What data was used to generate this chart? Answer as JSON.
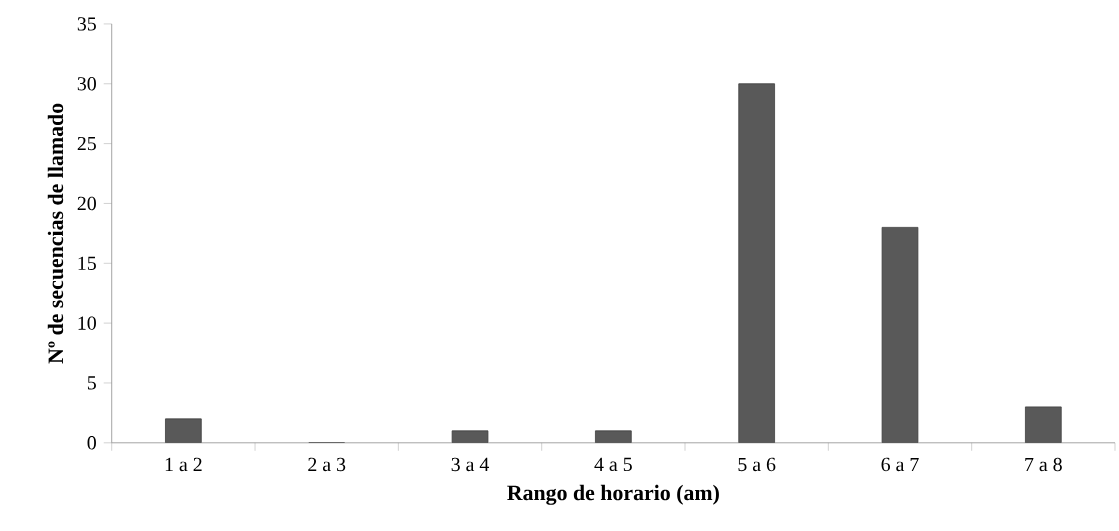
{
  "chart_data": {
    "type": "bar",
    "xlabel": "Rango de horario (am)",
    "ylabel": "Nº de secuencias de llamado",
    "categories": [
      "1 a 2",
      "2 a 3",
      "3 a 4",
      "4 a 5",
      "5 a 6",
      "6 a 7",
      "7 a 8"
    ],
    "values": [
      2,
      0,
      1,
      1,
      30,
      18,
      3
    ],
    "color": "#595959",
    "ylim": [
      0,
      35
    ],
    "yticks": [
      0,
      5,
      10,
      15,
      20,
      25,
      30,
      35
    ]
  }
}
